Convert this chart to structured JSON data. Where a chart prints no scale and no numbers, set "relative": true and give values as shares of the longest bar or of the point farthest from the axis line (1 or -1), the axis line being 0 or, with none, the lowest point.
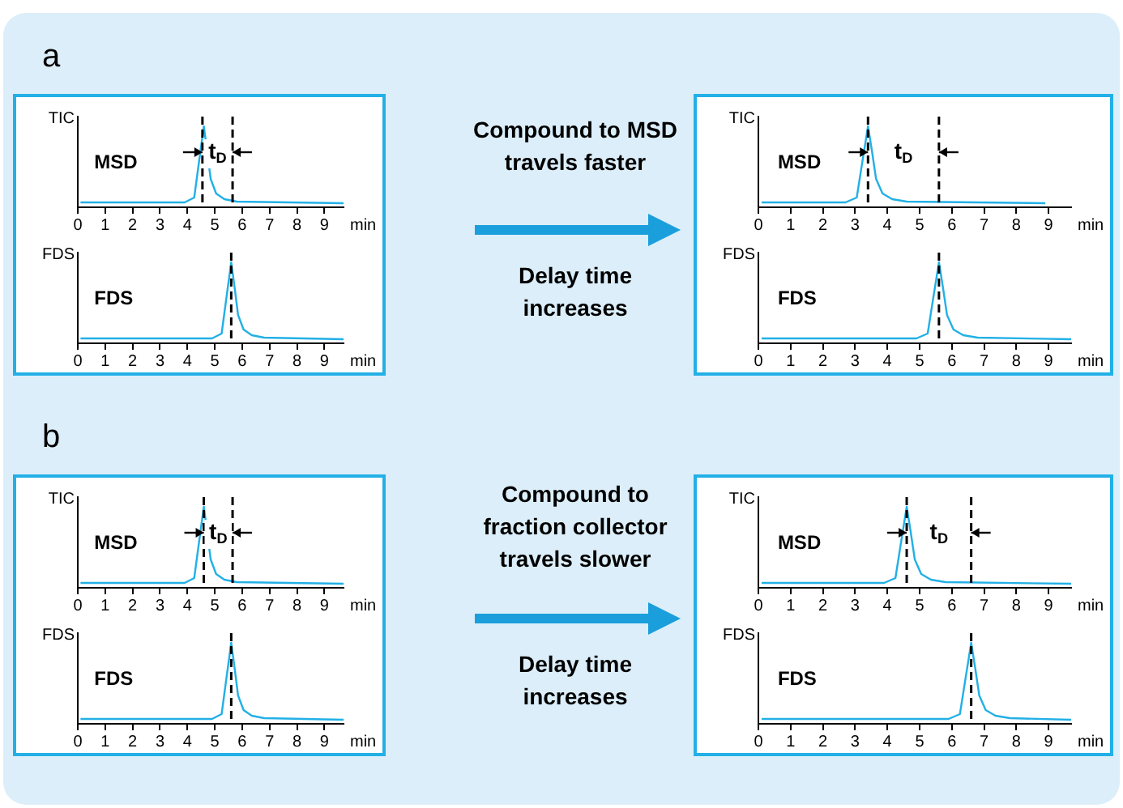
{
  "chart_data": [
    {
      "type": "line",
      "title": "a",
      "ylabel": "TIC",
      "xlabel": "min",
      "relative": true,
      "xlim": [
        0,
        9.7
      ],
      "xticks": [
        0,
        1,
        2,
        3,
        4,
        5,
        6,
        7,
        8,
        9
      ],
      "series": [
        {
          "name": "MSD",
          "color": "#22b0e6",
          "x": [
            0.1,
            3.9,
            4.25,
            4.42,
            4.6,
            4.72,
            4.85,
            5.05,
            5.35,
            5.8,
            9.7
          ],
          "values": [
            0.06,
            0.06,
            0.12,
            0.55,
            1,
            0.7,
            0.35,
            0.17,
            0.1,
            0.07,
            0.05
          ]
        }
      ],
      "ref_lines": [
        {
          "axis": "x",
          "value": 4.55,
          "color": "#000000",
          "line_style": "dashed"
        },
        {
          "axis": "x",
          "value": 5.65,
          "color": "#000000",
          "line_style": "dashed"
        }
      ],
      "annotations": [
        "t$_{D}$"
      ]
    },
    {
      "type": "line",
      "ylabel": "FDS",
      "xlabel": "min",
      "relative": true,
      "xlim": [
        0,
        9.7
      ],
      "xticks": [
        0,
        1,
        2,
        3,
        4,
        5,
        6,
        7,
        8,
        9
      ],
      "series": [
        {
          "name": "FDS",
          "color": "#22b0e6",
          "x": [
            0.1,
            4.9,
            5.25,
            5.42,
            5.6,
            5.72,
            5.85,
            6.05,
            6.35,
            6.8,
            9.7
          ],
          "values": [
            0.06,
            0.06,
            0.12,
            0.55,
            1,
            0.7,
            0.35,
            0.17,
            0.1,
            0.07,
            0.05
          ]
        }
      ],
      "ref_lines": [
        {
          "axis": "x",
          "value": 5.6,
          "color": "#000000",
          "line_style": "dashed"
        }
      ]
    },
    {
      "type": "line",
      "ylabel": "TIC",
      "xlabel": "min",
      "relative": true,
      "xlim": [
        0,
        9.7
      ],
      "xticks": [
        0,
        1,
        2,
        3,
        4,
        5,
        6,
        7,
        8,
        9
      ],
      "series": [
        {
          "name": "MSD",
          "color": "#22b0e6",
          "x": [
            0.1,
            2.7,
            3.05,
            3.22,
            3.4,
            3.52,
            3.65,
            3.85,
            4.15,
            4.6,
            8.9
          ],
          "values": [
            0.06,
            0.06,
            0.12,
            0.55,
            1,
            0.7,
            0.35,
            0.17,
            0.1,
            0.07,
            0.05
          ]
        }
      ],
      "ref_lines": [
        {
          "axis": "x",
          "value": 3.4,
          "color": "#000000",
          "line_style": "dashed"
        },
        {
          "axis": "x",
          "value": 5.6,
          "color": "#000000",
          "line_style": "dashed"
        }
      ],
      "annotations": [
        "t$_{D}$"
      ]
    },
    {
      "type": "line",
      "ylabel": "FDS",
      "xlabel": "min",
      "relative": true,
      "xlim": [
        0,
        9.7
      ],
      "xticks": [
        0,
        1,
        2,
        3,
        4,
        5,
        6,
        7,
        8,
        9
      ],
      "series": [
        {
          "name": "FDS",
          "color": "#22b0e6",
          "x": [
            0.1,
            4.9,
            5.25,
            5.42,
            5.6,
            5.72,
            5.85,
            6.05,
            6.35,
            6.8,
            9.7
          ],
          "values": [
            0.06,
            0.06,
            0.12,
            0.55,
            1,
            0.7,
            0.35,
            0.17,
            0.1,
            0.07,
            0.05
          ]
        }
      ],
      "ref_lines": [
        {
          "axis": "x",
          "value": 5.6,
          "color": "#000000",
          "line_style": "dashed"
        }
      ],
      "annotations": [
        "Compound to MSD travels faster",
        "Delay time increases"
      ]
    },
    {
      "type": "line",
      "title": "b",
      "ylabel": "TIC",
      "xlabel": "min",
      "relative": true,
      "xlim": [
        0,
        9.7
      ],
      "xticks": [
        0,
        1,
        2,
        3,
        4,
        5,
        6,
        7,
        8,
        9
      ],
      "series": [
        {
          "name": "MSD",
          "color": "#22b0e6",
          "x": [
            0.1,
            3.9,
            4.25,
            4.42,
            4.6,
            4.72,
            4.85,
            5.05,
            5.35,
            5.8,
            9.7
          ],
          "values": [
            0.06,
            0.06,
            0.12,
            0.55,
            1,
            0.7,
            0.35,
            0.17,
            0.1,
            0.07,
            0.05
          ]
        }
      ],
      "ref_lines": [
        {
          "axis": "x",
          "value": 4.6,
          "color": "#000000",
          "line_style": "dashed"
        },
        {
          "axis": "x",
          "value": 5.65,
          "color": "#000000",
          "line_style": "dashed"
        }
      ],
      "annotations": [
        "t$_{D}$"
      ]
    },
    {
      "type": "line",
      "ylabel": "FDS",
      "xlabel": "min",
      "relative": true,
      "xlim": [
        0,
        9.7
      ],
      "xticks": [
        0,
        1,
        2,
        3,
        4,
        5,
        6,
        7,
        8,
        9
      ],
      "series": [
        {
          "name": "FDS",
          "color": "#22b0e6",
          "x": [
            0.1,
            4.9,
            5.25,
            5.42,
            5.6,
            5.72,
            5.85,
            6.05,
            6.35,
            6.8,
            9.7
          ],
          "values": [
            0.06,
            0.06,
            0.12,
            0.55,
            1,
            0.7,
            0.35,
            0.17,
            0.1,
            0.07,
            0.05
          ]
        }
      ],
      "ref_lines": [
        {
          "axis": "x",
          "value": 5.6,
          "color": "#000000",
          "line_style": "dashed"
        }
      ]
    },
    {
      "type": "line",
      "ylabel": "TIC",
      "xlabel": "min",
      "relative": true,
      "xlim": [
        0,
        9.7
      ],
      "xticks": [
        0,
        1,
        2,
        3,
        4,
        5,
        6,
        7,
        8,
        9
      ],
      "series": [
        {
          "name": "MSD",
          "color": "#22b0e6",
          "x": [
            0.1,
            3.9,
            4.25,
            4.42,
            4.6,
            4.72,
            4.85,
            5.05,
            5.35,
            5.8,
            9.7
          ],
          "values": [
            0.06,
            0.06,
            0.12,
            0.55,
            1,
            0.7,
            0.35,
            0.17,
            0.1,
            0.07,
            0.05
          ]
        }
      ],
      "ref_lines": [
        {
          "axis": "x",
          "value": 4.6,
          "color": "#000000",
          "line_style": "dashed"
        },
        {
          "axis": "x",
          "value": 6.6,
          "color": "#000000",
          "line_style": "dashed"
        }
      ],
      "annotations": [
        "t$_{D}$"
      ]
    },
    {
      "type": "line",
      "ylabel": "FDS",
      "xlabel": "min",
      "relative": true,
      "xlim": [
        0,
        9.7
      ],
      "xticks": [
        0,
        1,
        2,
        3,
        4,
        5,
        6,
        7,
        8,
        9
      ],
      "series": [
        {
          "name": "FDS",
          "color": "#22b0e6",
          "x": [
            0.1,
            5.9,
            6.25,
            6.42,
            6.6,
            6.72,
            6.85,
            7.05,
            7.35,
            7.8,
            9.7
          ],
          "values": [
            0.06,
            0.06,
            0.12,
            0.55,
            1,
            0.7,
            0.35,
            0.17,
            0.1,
            0.07,
            0.05
          ]
        }
      ],
      "ref_lines": [
        {
          "axis": "x",
          "value": 6.6,
          "color": "#000000",
          "line_style": "dashed"
        }
      ],
      "annotations": [
        "Compound to fraction collector travels slower",
        "Delay time increases"
      ]
    }
  ]
}
